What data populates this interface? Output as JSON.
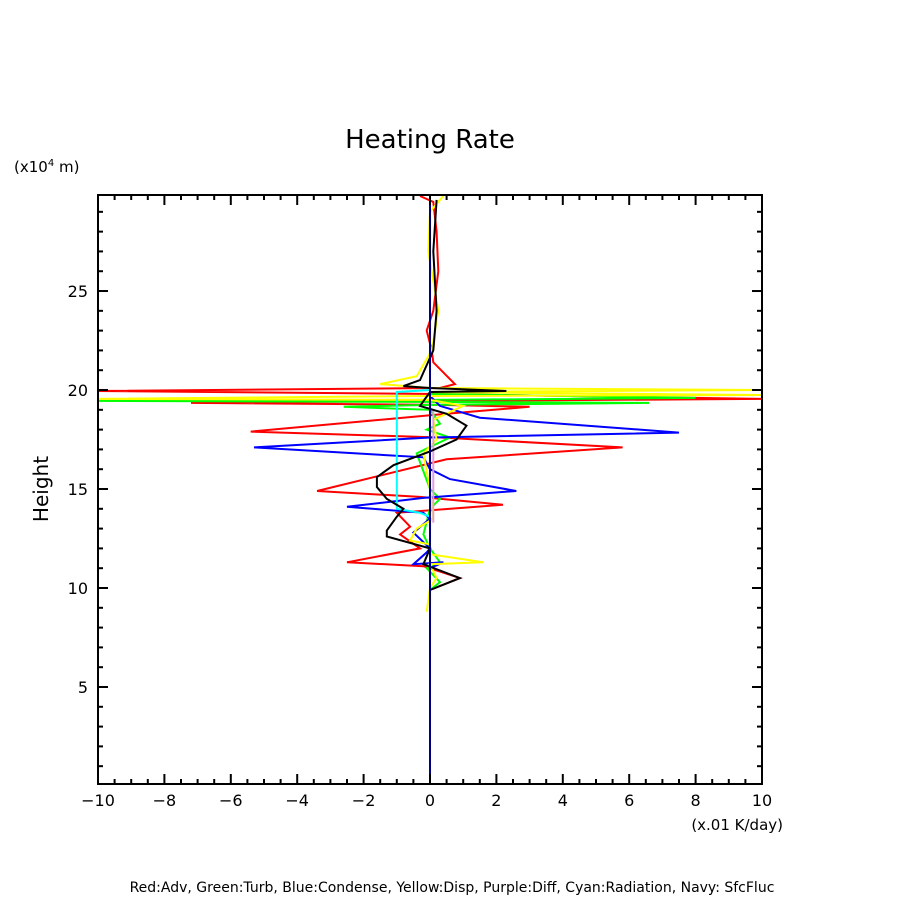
{
  "chart_data": {
    "type": "line",
    "title": "Heating Rate",
    "xlabel": "(x.01 K/day)",
    "ylabel": "Height",
    "yunit": "(x10",
    "yunit_exp": "4",
    "yunit_suffix": " m)",
    "xlim": [
      -10,
      10
    ],
    "ylim": [
      0.1,
      29.85
    ],
    "xticks": [
      -10,
      -8,
      -6,
      -4,
      -2,
      0,
      2,
      4,
      6,
      8,
      10
    ],
    "xtick_labels": [
      "−10",
      "−8",
      "−6",
      "−4",
      "−2",
      "0",
      "2",
      "4",
      "6",
      "8",
      "10"
    ],
    "yticks": [
      5,
      10,
      15,
      20,
      25
    ],
    "ytick_labels": [
      "5",
      "10",
      "15",
      "20",
      "25"
    ],
    "grid": false,
    "legend_text": "Red:Adv, Green:Turb, Blue:Condense, Yellow:Disp, Purple:Diff, Cyan:Radiation, Navy: SfcFluc",
    "series": [
      {
        "name": "Adv",
        "color": "#ff0000",
        "points": [
          [
            -0.3,
            29.8
          ],
          [
            0.1,
            29.5
          ],
          [
            0.2,
            28
          ],
          [
            0.25,
            26
          ],
          [
            0.1,
            24
          ],
          [
            -0.1,
            23
          ],
          [
            0.05,
            22
          ],
          [
            0.1,
            21.4
          ],
          [
            0.75,
            20.3
          ],
          [
            0.3,
            20.1
          ],
          [
            -10,
            19.95
          ],
          [
            0.2,
            19.8
          ],
          [
            10,
            19.55
          ],
          [
            0.3,
            19.45
          ],
          [
            -7.2,
            19.35
          ],
          [
            0.3,
            19.25
          ],
          [
            3,
            19.15
          ],
          [
            0.5,
            18.8
          ],
          [
            -5.4,
            17.9
          ],
          [
            0.3,
            17.6
          ],
          [
            5.8,
            17.1
          ],
          [
            0.5,
            16.5
          ],
          [
            -3.4,
            14.9
          ],
          [
            -0.3,
            14.6
          ],
          [
            2.2,
            14.2
          ],
          [
            -1,
            13.8
          ],
          [
            -0.6,
            13.1
          ],
          [
            -0.9,
            12.7
          ],
          [
            -0.3,
            12
          ],
          [
            -2.5,
            11.3
          ],
          [
            -0.2,
            11.1
          ],
          [
            0.9,
            10.5
          ],
          [
            0,
            9.9
          ],
          [
            0,
            0.1
          ]
        ]
      },
      {
        "name": "Turb",
        "color": "#00ff00",
        "points": [
          [
            0,
            29.8
          ],
          [
            0,
            19.8
          ],
          [
            8,
            19.6
          ],
          [
            0,
            19.5
          ],
          [
            -10,
            19.45
          ],
          [
            0,
            19.4
          ],
          [
            6.6,
            19.35
          ],
          [
            0,
            19.25
          ],
          [
            -2.6,
            19.15
          ],
          [
            0,
            19.0
          ],
          [
            0.3,
            18.3
          ],
          [
            -0.1,
            18
          ],
          [
            0.6,
            17.6
          ],
          [
            -0.4,
            16.8
          ],
          [
            0,
            15
          ],
          [
            0.3,
            14.5
          ],
          [
            0,
            14
          ],
          [
            -0.2,
            12.7
          ],
          [
            0,
            12
          ],
          [
            0.3,
            11.3
          ],
          [
            -0.1,
            11
          ],
          [
            0.3,
            10.3
          ],
          [
            0,
            9.9
          ],
          [
            0,
            0.1
          ]
        ]
      },
      {
        "name": "Condense",
        "color": "#0000ff",
        "points": [
          [
            0,
            29.8
          ],
          [
            0,
            19.7
          ],
          [
            0.3,
            19.2
          ],
          [
            1.5,
            18.6
          ],
          [
            7.5,
            17.85
          ],
          [
            0,
            17.6
          ],
          [
            -5.3,
            17.1
          ],
          [
            -0.2,
            16.6
          ],
          [
            0,
            16
          ],
          [
            0.6,
            15.5
          ],
          [
            2.6,
            14.9
          ],
          [
            -0.2,
            14.55
          ],
          [
            -2.5,
            14.1
          ],
          [
            -0.2,
            13.8
          ],
          [
            0,
            13.5
          ],
          [
            -0.5,
            12.8
          ],
          [
            0,
            12.0
          ],
          [
            -0.1,
            11.8
          ],
          [
            -0.5,
            11.2
          ],
          [
            0.4,
            11.3
          ],
          [
            0,
            11
          ],
          [
            0,
            0.1
          ]
        ]
      },
      {
        "name": "Disp",
        "color": "#ffff00",
        "points": [
          [
            0.4,
            29.8
          ],
          [
            0,
            29
          ],
          [
            -0.05,
            27
          ],
          [
            0.25,
            24
          ],
          [
            0.05,
            22
          ],
          [
            -0.4,
            20.7
          ],
          [
            -1.5,
            20.3
          ],
          [
            0,
            20.1
          ],
          [
            10,
            20.0
          ],
          [
            0,
            19.9
          ],
          [
            10,
            19.75
          ],
          [
            0,
            19.7
          ],
          [
            -10,
            19.55
          ],
          [
            0,
            19.5
          ],
          [
            1,
            19.2
          ],
          [
            0.1,
            18.5
          ],
          [
            0.2,
            17.5
          ],
          [
            -0.2,
            16.8
          ],
          [
            0,
            15
          ],
          [
            0.1,
            13.5
          ],
          [
            -0.4,
            13
          ],
          [
            -0.6,
            12.4
          ],
          [
            0,
            12.2
          ],
          [
            0,
            11.7
          ],
          [
            1.6,
            11.3
          ],
          [
            0,
            11.2
          ],
          [
            0.2,
            10.5
          ],
          [
            0,
            10
          ],
          [
            -0.1,
            8.8
          ]
        ]
      },
      {
        "name": "Diff",
        "color": "#dda0dd",
        "points": [
          [
            0.1,
            19.0
          ],
          [
            0.1,
            13.3
          ]
        ]
      },
      {
        "name": "Radiation",
        "color": "#00ffff",
        "points": [
          [
            0,
            0.1
          ],
          [
            0,
            13.6
          ],
          [
            -0.3,
            13.8
          ],
          [
            -1,
            14.0
          ],
          [
            -1,
            19.9
          ],
          [
            0,
            20.0
          ],
          [
            0,
            29.8
          ]
        ]
      },
      {
        "name": "SfcFluc-black",
        "color": "#000000",
        "points": [
          [
            0.2,
            29.6
          ],
          [
            0.1,
            27
          ],
          [
            0.2,
            24
          ],
          [
            0.1,
            22
          ],
          [
            -0.3,
            20.5
          ],
          [
            -0.8,
            20.2
          ],
          [
            0,
            20.1
          ],
          [
            2.3,
            19.95
          ],
          [
            0,
            19.9
          ],
          [
            -0.3,
            19.2
          ],
          [
            0.5,
            18.8
          ],
          [
            1.1,
            18.2
          ],
          [
            0.8,
            17.5
          ],
          [
            0,
            16.9
          ],
          [
            -1.1,
            16.2
          ],
          [
            -1.6,
            15.6
          ],
          [
            -1.6,
            15.1
          ],
          [
            -1.3,
            14.5
          ],
          [
            -0.8,
            14.0
          ],
          [
            -1.0,
            13.6
          ],
          [
            -1.3,
            12.9
          ],
          [
            -1.3,
            12.6
          ],
          [
            0,
            12.0
          ],
          [
            -0.2,
            11.2
          ],
          [
            0.9,
            10.5
          ],
          [
            0,
            9.9
          ],
          [
            0,
            0.1
          ]
        ]
      },
      {
        "name": "SfcFluc",
        "color": "#000080",
        "points": [
          [
            0,
            0.1
          ],
          [
            0,
            29.85
          ]
        ]
      }
    ]
  }
}
